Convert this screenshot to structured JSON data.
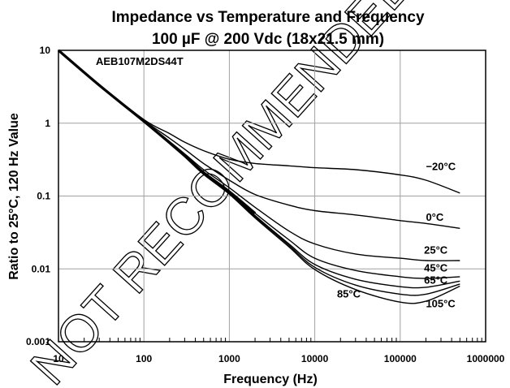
{
  "chart_data": {
    "type": "line",
    "title": "Impedance vs Temperature and Frequency",
    "subtitle": "100 µF @ 200 Vdc (18x21.5 mm)",
    "xlabel": "Frequency (Hz)",
    "ylabel": "Ratio to 25°C, 120 Hz Value",
    "xscale": "log",
    "yscale": "log",
    "xlim": [
      10,
      1000000
    ],
    "ylim": [
      0.001,
      10
    ],
    "x_ticks": [
      "10",
      "100",
      "1000",
      "10000",
      "100000",
      "1000000"
    ],
    "y_ticks": [
      "0.001",
      "0.01",
      "0.1",
      "1",
      "10"
    ],
    "grid": true,
    "annotations": [
      "AEB107M2DS44T"
    ],
    "watermark": "NOT RECOMMENDED",
    "series": [
      {
        "name": "−20°C",
        "x": [
          10,
          30,
          100,
          200,
          300,
          500,
          1000,
          2000,
          5000,
          10000,
          30000,
          100000,
          200000,
          500000
        ],
        "values": [
          10.0,
          3.4,
          1.12,
          0.72,
          0.55,
          0.42,
          0.32,
          0.28,
          0.26,
          0.245,
          0.23,
          0.195,
          0.165,
          0.11
        ]
      },
      {
        "name": "0°C",
        "x": [
          10,
          30,
          100,
          200,
          300,
          500,
          1000,
          2000,
          5000,
          10000,
          30000,
          100000,
          200000,
          500000
        ],
        "values": [
          10.0,
          3.35,
          1.1,
          0.62,
          0.44,
          0.28,
          0.165,
          0.105,
          0.075,
          0.063,
          0.055,
          0.046,
          0.042,
          0.036
        ]
      },
      {
        "name": "25°C",
        "x": [
          10,
          30,
          100,
          200,
          300,
          500,
          1000,
          2000,
          5000,
          10000,
          30000,
          100000,
          200000,
          500000
        ],
        "values": [
          10.0,
          3.33,
          1.08,
          0.56,
          0.38,
          0.23,
          0.13,
          0.07,
          0.033,
          0.022,
          0.016,
          0.014,
          0.013,
          0.013
        ]
      },
      {
        "name": "45°C",
        "x": [
          10,
          30,
          100,
          200,
          300,
          500,
          1000,
          2000,
          5000,
          10000,
          30000,
          100000,
          200000,
          500000
        ],
        "values": [
          10.0,
          3.32,
          1.06,
          0.54,
          0.36,
          0.21,
          0.115,
          0.058,
          0.025,
          0.014,
          0.0095,
          0.0078,
          0.0074,
          0.0078
        ]
      },
      {
        "name": "65°C",
        "x": [
          10,
          30,
          100,
          200,
          300,
          500,
          1000,
          2000,
          5000,
          10000,
          30000,
          100000,
          200000,
          500000
        ],
        "values": [
          10.0,
          3.32,
          1.05,
          0.53,
          0.355,
          0.205,
          0.11,
          0.054,
          0.022,
          0.0115,
          0.0072,
          0.0057,
          0.0056,
          0.0068
        ]
      },
      {
        "name": "85°C",
        "x": [
          10,
          30,
          100,
          200,
          300,
          500,
          1000,
          2000,
          5000,
          10000,
          30000,
          100000,
          200000,
          500000
        ],
        "values": [
          10.0,
          3.31,
          1.05,
          0.525,
          0.35,
          0.2,
          0.108,
          0.052,
          0.021,
          0.0105,
          0.006,
          0.0045,
          0.0045,
          0.0062
        ]
      },
      {
        "name": "105°C",
        "x": [
          10,
          30,
          100,
          200,
          300,
          500,
          1000,
          2000,
          5000,
          10000,
          30000,
          100000,
          200000,
          500000
        ],
        "values": [
          10.0,
          3.3,
          1.04,
          0.52,
          0.345,
          0.198,
          0.106,
          0.05,
          0.02,
          0.0098,
          0.0052,
          0.0035,
          0.0036,
          0.0058
        ]
      }
    ]
  }
}
